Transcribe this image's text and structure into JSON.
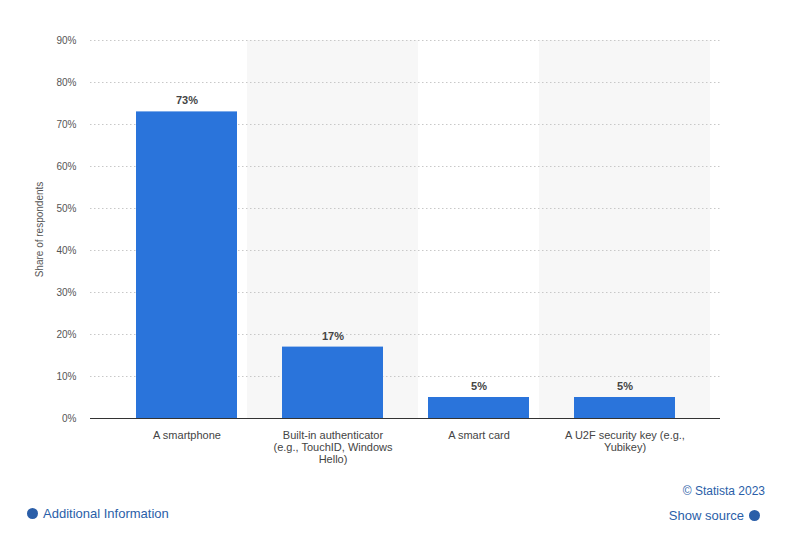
{
  "chart_data": {
    "type": "bar",
    "y_label": "Share of respondents",
    "categories": [
      "A smartphone",
      "Built-in authenticator (e.g., TouchID, Windows Hello)",
      "A smart card",
      "A U2F security key (e.g., Yubikey)"
    ],
    "values": [
      73,
      17,
      5,
      5
    ],
    "value_labels": [
      "73%",
      "17%",
      "5%",
      "5%"
    ],
    "data_labels": true,
    "color": "#2a74db",
    "ylim": [
      0,
      90
    ],
    "yticks": [
      {
        "value": 0,
        "label": "0%"
      },
      {
        "value": 10,
        "label": "10%"
      },
      {
        "value": 20,
        "label": "20%"
      },
      {
        "value": 30,
        "label": "30%"
      },
      {
        "value": 40,
        "label": "40%"
      },
      {
        "value": 50,
        "label": "50%"
      },
      {
        "value": 60,
        "label": "60%"
      },
      {
        "value": 70,
        "label": "70%"
      },
      {
        "value": 80,
        "label": "80%"
      },
      {
        "value": 90,
        "label": "90%"
      }
    ],
    "grid": true,
    "annotations": [
      "© Statista 2023",
      "Additional Information",
      "Show source"
    ]
  }
}
